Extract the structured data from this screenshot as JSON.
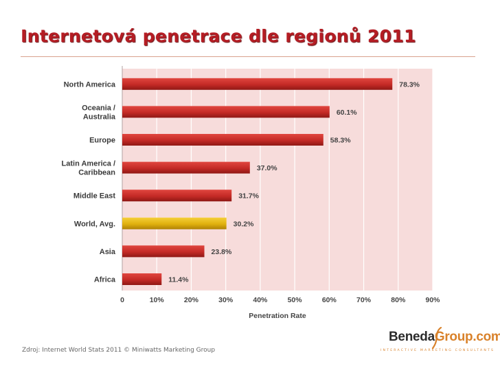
{
  "slide": {
    "title": "Internetová penetrace dle regionů 2011",
    "source": "Zdroj: Internet World Stats 2011 © Miniwatts Marketing Group"
  },
  "logo": {
    "part1": "Beneda",
    "part2": "Group.com",
    "tagline": "INTERACTIVE MARKETING CONSULTANTS"
  },
  "chart_data": {
    "type": "bar",
    "orientation": "horizontal",
    "title": "",
    "xlabel": "Penetration Rate",
    "ylabel": "",
    "xlim": [
      0,
      90
    ],
    "grid": true,
    "categories": [
      [
        "North America"
      ],
      [
        "Oceania  /",
        "Australia"
      ],
      [
        "Europe"
      ],
      [
        "Latin America /",
        "Caribbean"
      ],
      [
        "Middle East"
      ],
      [
        "World, Avg."
      ],
      [
        "Asia"
      ],
      [
        "Africa"
      ]
    ],
    "values": [
      78.3,
      60.1,
      58.3,
      37.0,
      31.7,
      30.2,
      23.8,
      11.4
    ],
    "value_labels": [
      "78.3%",
      "60.1%",
      "58.3%",
      "37.0%",
      "31.7%",
      "30.2%",
      "23.8%",
      "11.4%"
    ],
    "highlight_index": 5,
    "ticks": [
      0,
      10,
      20,
      30,
      40,
      50,
      60,
      70,
      80,
      90
    ],
    "tick_labels": [
      "0",
      "10%",
      "20%",
      "30%",
      "40%",
      "50%",
      "60%",
      "70%",
      "80%",
      "90%"
    ],
    "colors": {
      "bar": "#c42a26",
      "highlight": "#e0b10e",
      "plot_background": "#f7dcdb",
      "grid": "#ffffff"
    }
  }
}
